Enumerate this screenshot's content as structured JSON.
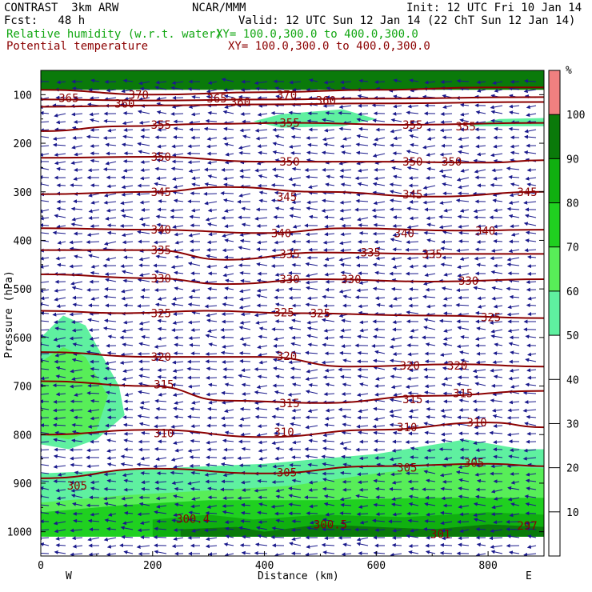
{
  "header": {
    "line1_left": "CONTRAST  3km ARW",
    "line1_center": "NCAR/MMM",
    "line1_right": "Init: 12 UTC Fri 10 Jan 14",
    "line2_left": "Fcst:   48 h",
    "line2_right": "Valid: 12 UTC Sun 12 Jan 14 (22 ChT Sun 12 Jan 14)",
    "field1_label": "Relative humidity (w.r.t. water)",
    "field1_xy": "XY= 100.0,300.0 to 400.0,300.0",
    "field2_label": "Potential temperature",
    "field2_xy": "XY= 100.0,300.0 to 400.0,300.0"
  },
  "colors": {
    "rh_label": "#11a611",
    "theta_line": "#8b0000",
    "wind": "#1a1a8c",
    "rh_50": "#5ff0a0",
    "rh_60": "#58ee58",
    "rh_70": "#20d020",
    "rh_80": "#10b010",
    "rh_90": "#0a7a0a",
    "rh_100": "#f08080"
  },
  "chart_data": {
    "type": "heatmap",
    "xlabel": "Distance (km)",
    "ylabel": "Pressure (hPa)",
    "xlim": [
      0,
      900
    ],
    "ylim": [
      1050,
      50
    ],
    "x_ticks": [
      0,
      200,
      400,
      600,
      800
    ],
    "y_ticks": [
      100,
      200,
      300,
      400,
      500,
      600,
      700,
      800,
      900,
      1000
    ],
    "x_end_labels": {
      "left": "W",
      "right": "E"
    },
    "colorbar": {
      "unit": "%",
      "levels": [
        10,
        20,
        30,
        40,
        50,
        60,
        70,
        80,
        90,
        100
      ],
      "filled_from": 50
    },
    "rh_regions": [
      {
        "level": 50,
        "polygon": [
          [
            0,
            600
          ],
          [
            40,
            555
          ],
          [
            80,
            575
          ],
          [
            140,
            700
          ],
          [
            150,
            760
          ],
          [
            100,
            810
          ],
          [
            50,
            830
          ],
          [
            0,
            820
          ]
        ]
      },
      {
        "level": 60,
        "polygon": [
          [
            0,
            650
          ],
          [
            40,
            620
          ],
          [
            80,
            640
          ],
          [
            120,
            720
          ],
          [
            100,
            790
          ],
          [
            50,
            810
          ],
          [
            0,
            800
          ]
        ]
      },
      {
        "level": 50,
        "polygon": [
          [
            380,
            155
          ],
          [
            430,
            140
          ],
          [
            540,
            130
          ],
          [
            600,
            150
          ],
          [
            540,
            165
          ],
          [
            430,
            168
          ]
        ]
      },
      {
        "level": 50,
        "polygon": [
          [
            760,
            165
          ],
          [
            820,
            150
          ],
          [
            900,
            148
          ],
          [
            900,
            165
          ]
        ]
      },
      {
        "level": 50,
        "polygon": [
          [
            0,
            880
          ],
          [
            200,
            870
          ],
          [
            400,
            860
          ],
          [
            600,
            840
          ],
          [
            760,
            810
          ],
          [
            860,
            830
          ],
          [
            900,
            830
          ],
          [
            900,
            1010
          ],
          [
            0,
            1010
          ]
        ]
      },
      {
        "level": 60,
        "polygon": [
          [
            0,
            940
          ],
          [
            150,
            925
          ],
          [
            300,
            915
          ],
          [
            450,
            905
          ],
          [
            600,
            880
          ],
          [
            750,
            860
          ],
          [
            900,
            870
          ],
          [
            900,
            1010
          ],
          [
            0,
            1010
          ]
        ]
      },
      {
        "level": 70,
        "polygon": [
          [
            0,
            960
          ],
          [
            150,
            945
          ],
          [
            300,
            935
          ],
          [
            500,
            935
          ],
          [
            700,
            930
          ],
          [
            900,
            930
          ],
          [
            900,
            1010
          ],
          [
            0,
            1010
          ]
        ]
      },
      {
        "level": 80,
        "polygon": [
          [
            200,
            975
          ],
          [
            300,
            965
          ],
          [
            380,
            975
          ],
          [
            500,
            965
          ],
          [
            650,
            970
          ],
          [
            800,
            960
          ],
          [
            900,
            965
          ],
          [
            900,
            1010
          ],
          [
            200,
            1010
          ]
        ]
      },
      {
        "level": 90,
        "polygon": [
          [
            250,
            995
          ],
          [
            350,
            990
          ],
          [
            400,
            1000
          ],
          [
            500,
            985
          ],
          [
            600,
            990
          ],
          [
            700,
            995
          ],
          [
            800,
            985
          ],
          [
            900,
            990
          ],
          [
            900,
            1010
          ],
          [
            250,
            1010
          ]
        ]
      },
      {
        "level": 90,
        "polygon": [
          [
            0,
            50
          ],
          [
            900,
            50
          ],
          [
            900,
            90
          ],
          [
            0,
            90
          ]
        ]
      }
    ],
    "theta_contours": [
      {
        "theta": 370,
        "points": [
          [
            0,
            90
          ],
          [
            200,
            100
          ],
          [
            400,
            95
          ],
          [
            600,
            90
          ],
          [
            800,
            85
          ],
          [
            900,
            85
          ]
        ]
      },
      {
        "theta": 365,
        "points": [
          [
            0,
            110
          ],
          [
            200,
            112
          ],
          [
            400,
            110
          ],
          [
            600,
            108
          ],
          [
            900,
            105
          ]
        ]
      },
      {
        "theta": 360,
        "points": [
          [
            0,
            125
          ],
          [
            200,
            122
          ],
          [
            400,
            120
          ],
          [
            600,
            118
          ],
          [
            900,
            115
          ]
        ]
      },
      {
        "theta": 355,
        "points": [
          [
            0,
            175
          ],
          [
            150,
            165
          ],
          [
            300,
            160
          ],
          [
            450,
            158
          ],
          [
            650,
            162
          ],
          [
            900,
            158
          ]
        ]
      },
      {
        "theta": 350,
        "points": [
          [
            0,
            230
          ],
          [
            200,
            228
          ],
          [
            400,
            238
          ],
          [
            600,
            238
          ],
          [
            800,
            240
          ],
          [
            900,
            235
          ]
        ]
      },
      {
        "theta": 345,
        "points": [
          [
            0,
            305
          ],
          [
            200,
            300
          ],
          [
            330,
            290
          ],
          [
            500,
            300
          ],
          [
            700,
            310
          ],
          [
            900,
            300
          ]
        ]
      },
      {
        "theta": 340,
        "points": [
          [
            0,
            375
          ],
          [
            200,
            378
          ],
          [
            400,
            385
          ],
          [
            550,
            375
          ],
          [
            750,
            380
          ],
          [
            900,
            378
          ]
        ]
      },
      {
        "theta": 335,
        "points": [
          [
            0,
            420
          ],
          [
            200,
            420
          ],
          [
            330,
            440
          ],
          [
            500,
            425
          ],
          [
            700,
            428
          ],
          [
            900,
            428
          ]
        ]
      },
      {
        "theta": 330,
        "points": [
          [
            0,
            470
          ],
          [
            200,
            478
          ],
          [
            330,
            490
          ],
          [
            500,
            480
          ],
          [
            700,
            485
          ],
          [
            900,
            480
          ]
        ]
      },
      {
        "theta": 325,
        "points": [
          [
            0,
            545
          ],
          [
            150,
            550
          ],
          [
            300,
            545
          ],
          [
            450,
            550
          ],
          [
            700,
            555
          ],
          [
            900,
            560
          ]
        ]
      },
      {
        "theta": 320,
        "points": [
          [
            0,
            630
          ],
          [
            200,
            640
          ],
          [
            400,
            640
          ],
          [
            550,
            660
          ],
          [
            750,
            655
          ],
          [
            900,
            660
          ]
        ]
      },
      {
        "theta": 315,
        "points": [
          [
            0,
            690
          ],
          [
            200,
            700
          ],
          [
            330,
            730
          ],
          [
            500,
            735
          ],
          [
            700,
            720
          ],
          [
            900,
            710
          ]
        ]
      },
      {
        "theta": 310,
        "points": [
          [
            0,
            800
          ],
          [
            200,
            790
          ],
          [
            400,
            805
          ],
          [
            600,
            790
          ],
          [
            800,
            775
          ],
          [
            900,
            785
          ]
        ]
      },
      {
        "theta": 305,
        "points": [
          [
            0,
            890
          ],
          [
            200,
            870
          ],
          [
            400,
            880
          ],
          [
            600,
            865
          ],
          [
            800,
            860
          ],
          [
            900,
            865
          ]
        ]
      }
    ],
    "theta_labels": [
      {
        "text": "370",
        "x": 175,
        "p": 100
      },
      {
        "text": "370",
        "x": 440,
        "p": 100
      },
      {
        "text": "365",
        "x": 50,
        "p": 107
      },
      {
        "text": "365",
        "x": 315,
        "p": 108
      },
      {
        "text": "360",
        "x": 150,
        "p": 118
      },
      {
        "text": "360",
        "x": 357,
        "p": 115
      },
      {
        "text": "360",
        "x": 510,
        "p": 112
      },
      {
        "text": "355",
        "x": 215,
        "p": 162
      },
      {
        "text": "355",
        "x": 445,
        "p": 158
      },
      {
        "text": "355",
        "x": 665,
        "p": 162
      },
      {
        "text": "355",
        "x": 760,
        "p": 165
      },
      {
        "text": "350",
        "x": 215,
        "p": 228
      },
      {
        "text": "350",
        "x": 445,
        "p": 238
      },
      {
        "text": "350",
        "x": 665,
        "p": 238
      },
      {
        "text": "350",
        "x": 735,
        "p": 238
      },
      {
        "text": "345",
        "x": 215,
        "p": 300
      },
      {
        "text": "345",
        "x": 440,
        "p": 310
      },
      {
        "text": "345",
        "x": 665,
        "p": 305
      },
      {
        "text": "345",
        "x": 870,
        "p": 300
      },
      {
        "text": "340",
        "x": 215,
        "p": 378
      },
      {
        "text": "340",
        "x": 430,
        "p": 385
      },
      {
        "text": "340",
        "x": 650,
        "p": 385
      },
      {
        "text": "340",
        "x": 795,
        "p": 380
      },
      {
        "text": "335",
        "x": 215,
        "p": 420
      },
      {
        "text": "335",
        "x": 445,
        "p": 428
      },
      {
        "text": "335",
        "x": 590,
        "p": 425
      },
      {
        "text": "335",
        "x": 700,
        "p": 428
      },
      {
        "text": "330",
        "x": 215,
        "p": 478
      },
      {
        "text": "330",
        "x": 445,
        "p": 480
      },
      {
        "text": "330",
        "x": 555,
        "p": 480
      },
      {
        "text": "330",
        "x": 765,
        "p": 483
      },
      {
        "text": "325",
        "x": 215,
        "p": 550
      },
      {
        "text": "325",
        "x": 435,
        "p": 548
      },
      {
        "text": "325",
        "x": 500,
        "p": 550
      },
      {
        "text": "325",
        "x": 805,
        "p": 558
      },
      {
        "text": "320",
        "x": 215,
        "p": 640
      },
      {
        "text": "320",
        "x": 440,
        "p": 638
      },
      {
        "text": "320",
        "x": 660,
        "p": 658
      },
      {
        "text": "320",
        "x": 745,
        "p": 658
      },
      {
        "text": "315",
        "x": 220,
        "p": 697
      },
      {
        "text": "315",
        "x": 445,
        "p": 735
      },
      {
        "text": "315",
        "x": 665,
        "p": 727
      },
      {
        "text": "315",
        "x": 755,
        "p": 715
      },
      {
        "text": "310",
        "x": 220,
        "p": 797
      },
      {
        "text": "310",
        "x": 435,
        "p": 795
      },
      {
        "text": "310",
        "x": 655,
        "p": 785
      },
      {
        "text": "310",
        "x": 780,
        "p": 775
      },
      {
        "text": "305",
        "x": 65,
        "p": 905
      },
      {
        "text": "305",
        "x": 440,
        "p": 878
      },
      {
        "text": "305",
        "x": 655,
        "p": 868
      },
      {
        "text": "305",
        "x": 775,
        "p": 858
      }
    ],
    "annotations": [
      {
        "text": "300.4",
        "x": 272,
        "p": 973
      },
      {
        "text": "300.5",
        "x": 518,
        "p": 985
      },
      {
        "text": "301",
        "x": 715,
        "p": 1005
      },
      {
        "text": "297",
        "x": 870,
        "p": 987
      }
    ],
    "wind_vectors": {
      "note": "dense field of blue wind arrows, mostly westward-pointing"
    }
  }
}
